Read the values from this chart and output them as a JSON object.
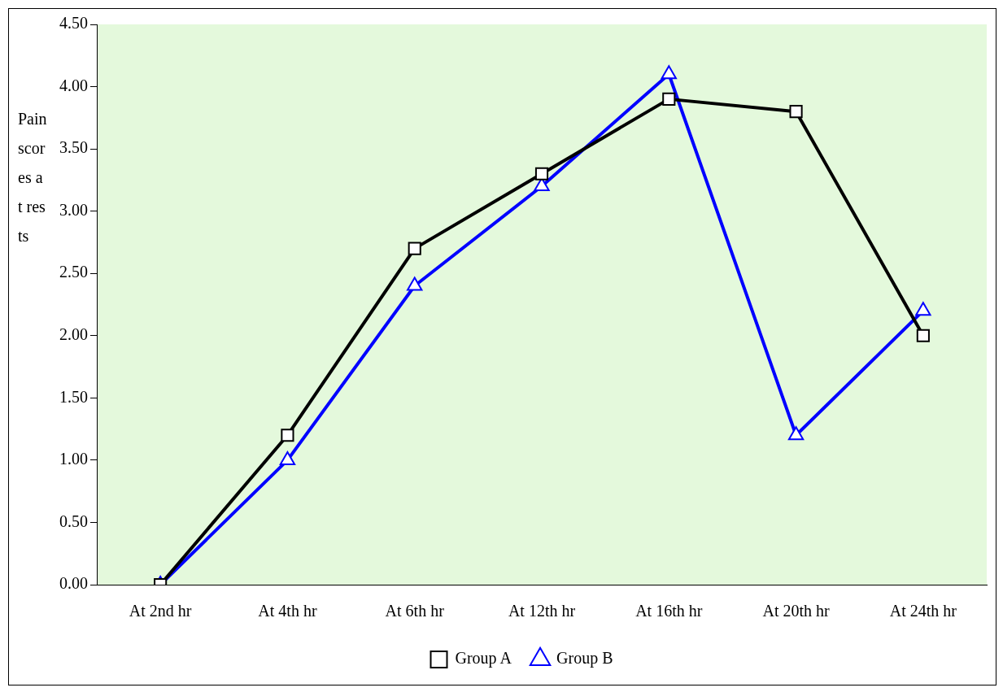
{
  "chart_data": {
    "type": "line",
    "ylabel": "Pain scores at rests",
    "categories": [
      "At 2nd hr",
      "At 4th hr",
      "At 6th hr",
      "At 12th hr",
      "At 16th hr",
      "At 20th hr",
      "At 24th hr"
    ],
    "series": [
      {
        "name": "Group A",
        "color": "#000000",
        "marker": "square",
        "values": [
          0,
          1.2,
          2.7,
          3.3,
          3.9,
          3.8,
          2.0
        ]
      },
      {
        "name": "Group B",
        "color": "#0000ff",
        "marker": "triangle",
        "values": [
          0,
          1.0,
          2.4,
          3.2,
          4.1,
          1.2,
          2.2
        ]
      }
    ],
    "ylim": [
      0,
      4.5
    ],
    "yticks": [
      {
        "value": 0,
        "label": "0.00"
      },
      {
        "value": 0.5,
        "label": "0.50"
      },
      {
        "value": 1,
        "label": "1.00"
      },
      {
        "value": 1.5,
        "label": "1.50"
      },
      {
        "value": 2,
        "label": "2.00"
      },
      {
        "value": 2.5,
        "label": "2.50"
      },
      {
        "value": 3,
        "label": "3.00"
      },
      {
        "value": 3.5,
        "label": "3.50"
      },
      {
        "value": 4,
        "label": "4.00"
      },
      {
        "value": 4.5,
        "label": "4.50"
      }
    ],
    "grid": false,
    "legend": "bottom",
    "line_style": "solid"
  }
}
